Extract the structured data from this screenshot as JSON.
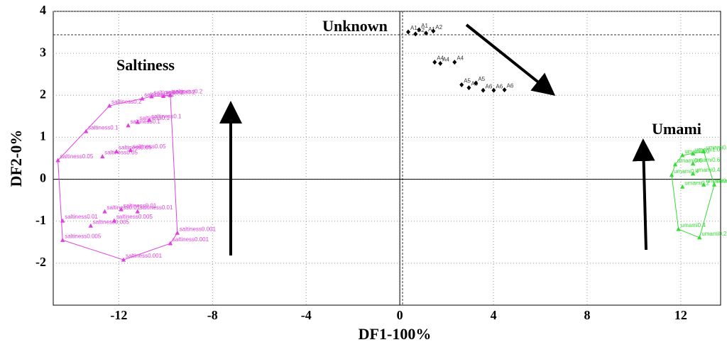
{
  "chart_data": {
    "type": "scatter",
    "xlabel": "DF1-100%",
    "ylabel": "DF2-0%",
    "annotations": [
      "Saltiness",
      "Unknown",
      "Umami"
    ],
    "xlim": [
      -14.8,
      13.7
    ],
    "xticks": [
      -12,
      -8,
      -4,
      0,
      4,
      8,
      12
    ],
    "ylim": [
      -3,
      4
    ],
    "yticks": [
      -2,
      -1,
      0,
      1,
      2,
      3,
      4
    ],
    "grid": true,
    "series": [
      {
        "color": "#e040e0",
        "marker": "triangle",
        "hull": true,
        "x": [
          -11.0,
          -10.6,
          -10.1,
          -12.4,
          -9.8,
          -11.6,
          -11.2,
          -10.7,
          -13.4,
          -12.7,
          -12.1,
          -11.5,
          -14.6,
          -12.6,
          -11.9,
          -11.2,
          -14.4,
          -13.2,
          -12.2,
          -14.4,
          -11.8,
          -9.8,
          -9.5
        ],
        "values": [
          1.92,
          1.97,
          1.98,
          1.75,
          2.0,
          1.28,
          1.36,
          1.41,
          1.14,
          0.54,
          0.66,
          0.69,
          0.45,
          -0.77,
          -0.72,
          -0.77,
          -0.99,
          -1.11,
          -0.99,
          -1.45,
          -1.92,
          -1.53,
          -1.28
        ],
        "labels": [
          "saltiness0.2",
          "saltiness0.2",
          "saltiness0.2",
          "saltiness0.2",
          "saltiness0.2",
          "saltiness0.1",
          "saltiness0.1",
          "saltiness0.1",
          "saltiness0.1",
          "saltiness0.05",
          "saltiness0.05",
          "saltiness0.05",
          "saltiness0.05",
          "saltiness0.01",
          "saltiness0.01",
          "saltiness0.01",
          "saltiness0.01",
          "saltiness0.005",
          "saltiness0.005",
          "saltiness0.005",
          "saltiness0.001",
          "saltiness0.001",
          "saltiness0.001"
        ]
      },
      {
        "color": "#000000",
        "marker": "diamond",
        "hull": false,
        "x": [
          0.36,
          0.82,
          1.12,
          0.67,
          1.43,
          1.49,
          1.73,
          2.34,
          2.64,
          2.95,
          3.25,
          3.56,
          4.01,
          4.47
        ],
        "values": [
          3.51,
          3.56,
          3.48,
          3.46,
          3.53,
          2.79,
          2.76,
          2.79,
          2.25,
          2.18,
          2.29,
          2.12,
          2.12,
          2.13
        ],
        "labels": [
          "A1",
          "A1",
          "A1",
          "A2",
          "A2",
          "A4",
          "A4",
          "A4",
          "A5",
          "A5",
          "A5",
          "A6",
          "A6",
          "A6"
        ]
      },
      {
        "color": "#33dd33",
        "marker": "triangle",
        "hull": true,
        "x": [
          12.07,
          12.52,
          12.98,
          11.76,
          12.52,
          11.61,
          12.52,
          12.07,
          12.98,
          13.43,
          11.9,
          12.8
        ],
        "values": [
          0.57,
          0.61,
          0.66,
          0.35,
          0.37,
          0.1,
          0.13,
          -0.18,
          -0.13,
          -0.13,
          -1.19,
          -1.39
        ],
        "labels": [
          "umami1.0",
          "umami1.0",
          "umami0.8",
          "umami0.6",
          "umami0.6",
          "umami0.4",
          "umami0.4",
          "umami0.2",
          "umami0.2",
          "umami0.2",
          "umami0.4",
          "umami0.2"
        ]
      }
    ]
  }
}
